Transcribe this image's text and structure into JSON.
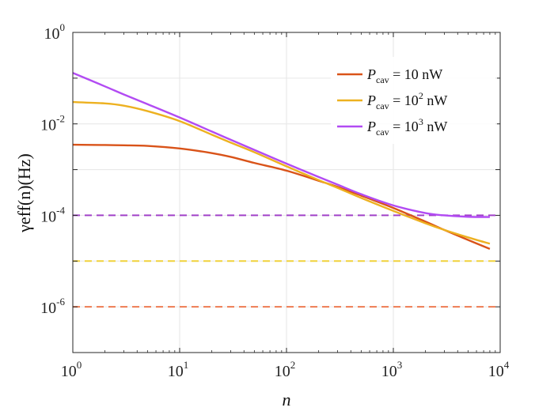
{
  "chart_data": {
    "type": "line",
    "xscale": "log",
    "yscale": "log",
    "xlim": [
      1,
      10000
    ],
    "ylim": [
      1e-07,
      1
    ],
    "xlabel": "n",
    "ylabel": "γeff(n)(Hz)",
    "grid": true,
    "legend_position": "top-right",
    "x_ticks": [
      {
        "base": "10",
        "exp": "0"
      },
      {
        "base": "10",
        "exp": "1"
      },
      {
        "base": "10",
        "exp": "2"
      },
      {
        "base": "10",
        "exp": "3"
      },
      {
        "base": "10",
        "exp": "4"
      }
    ],
    "y_ticks": [
      {
        "base": "10",
        "exp": "0"
      },
      {
        "base": "10",
        "exp": "-2"
      },
      {
        "base": "10",
        "exp": "-4"
      },
      {
        "base": "10",
        "exp": "-6"
      }
    ],
    "series": [
      {
        "name": "Pcav = 10 nW",
        "legend_base": "P",
        "legend_sub": "cav",
        "legend_tail": " = 10 nW",
        "legend_sup": "",
        "color": "#D95319",
        "dash_color": "#EE7B52",
        "floor": 1e-06,
        "x": [
          1,
          2,
          3,
          5,
          10,
          20,
          30,
          50,
          100,
          200,
          300,
          500,
          1000,
          2000,
          3000,
          5000,
          8000
        ],
        "y": [
          0.0035,
          0.00345,
          0.0034,
          0.0033,
          0.0029,
          0.0023,
          0.0019,
          0.0014,
          0.00095,
          0.00057,
          0.00042,
          0.00027,
          0.000145,
          7.3e-05,
          4.8e-05,
          2.9e-05,
          1.85e-05
        ]
      },
      {
        "name": "Pcav = 10^2 nW",
        "legend_base": "P",
        "legend_sub": "cav",
        "legend_tail": " = 10",
        "legend_sup": "2",
        "legend_end": " nW",
        "color": "#EDB120",
        "dash_color": "#F0D23A",
        "floor": 1e-05,
        "x": [
          1,
          2,
          3,
          5,
          10,
          20,
          30,
          50,
          100,
          200,
          300,
          500,
          1000,
          2000,
          3000,
          5000,
          8000
        ],
        "y": [
          0.03,
          0.028,
          0.025,
          0.019,
          0.0115,
          0.0058,
          0.0039,
          0.0024,
          0.00118,
          0.00059,
          0.0004,
          0.00024,
          0.000125,
          6.7e-05,
          4.8e-05,
          3.3e-05,
          2.4e-05
        ]
      },
      {
        "name": "Pcav = 10^3 nW",
        "legend_base": "P",
        "legend_sub": "cav",
        "legend_tail": " = 10",
        "legend_sup": "3",
        "legend_end": " nW",
        "color": "#B24BF3",
        "dash_color": "#A040C8",
        "floor": 0.0001,
        "x": [
          1,
          2,
          3,
          5,
          10,
          20,
          30,
          50,
          100,
          200,
          300,
          500,
          1000,
          2000,
          3000,
          5000,
          8000
        ],
        "y": [
          0.13,
          0.066,
          0.044,
          0.027,
          0.0138,
          0.0068,
          0.0045,
          0.0027,
          0.00135,
          0.00069,
          0.00047,
          0.00029,
          0.000165,
          0.000112,
          0.0001,
          9.3e-05,
          9.2e-05
        ]
      }
    ]
  }
}
